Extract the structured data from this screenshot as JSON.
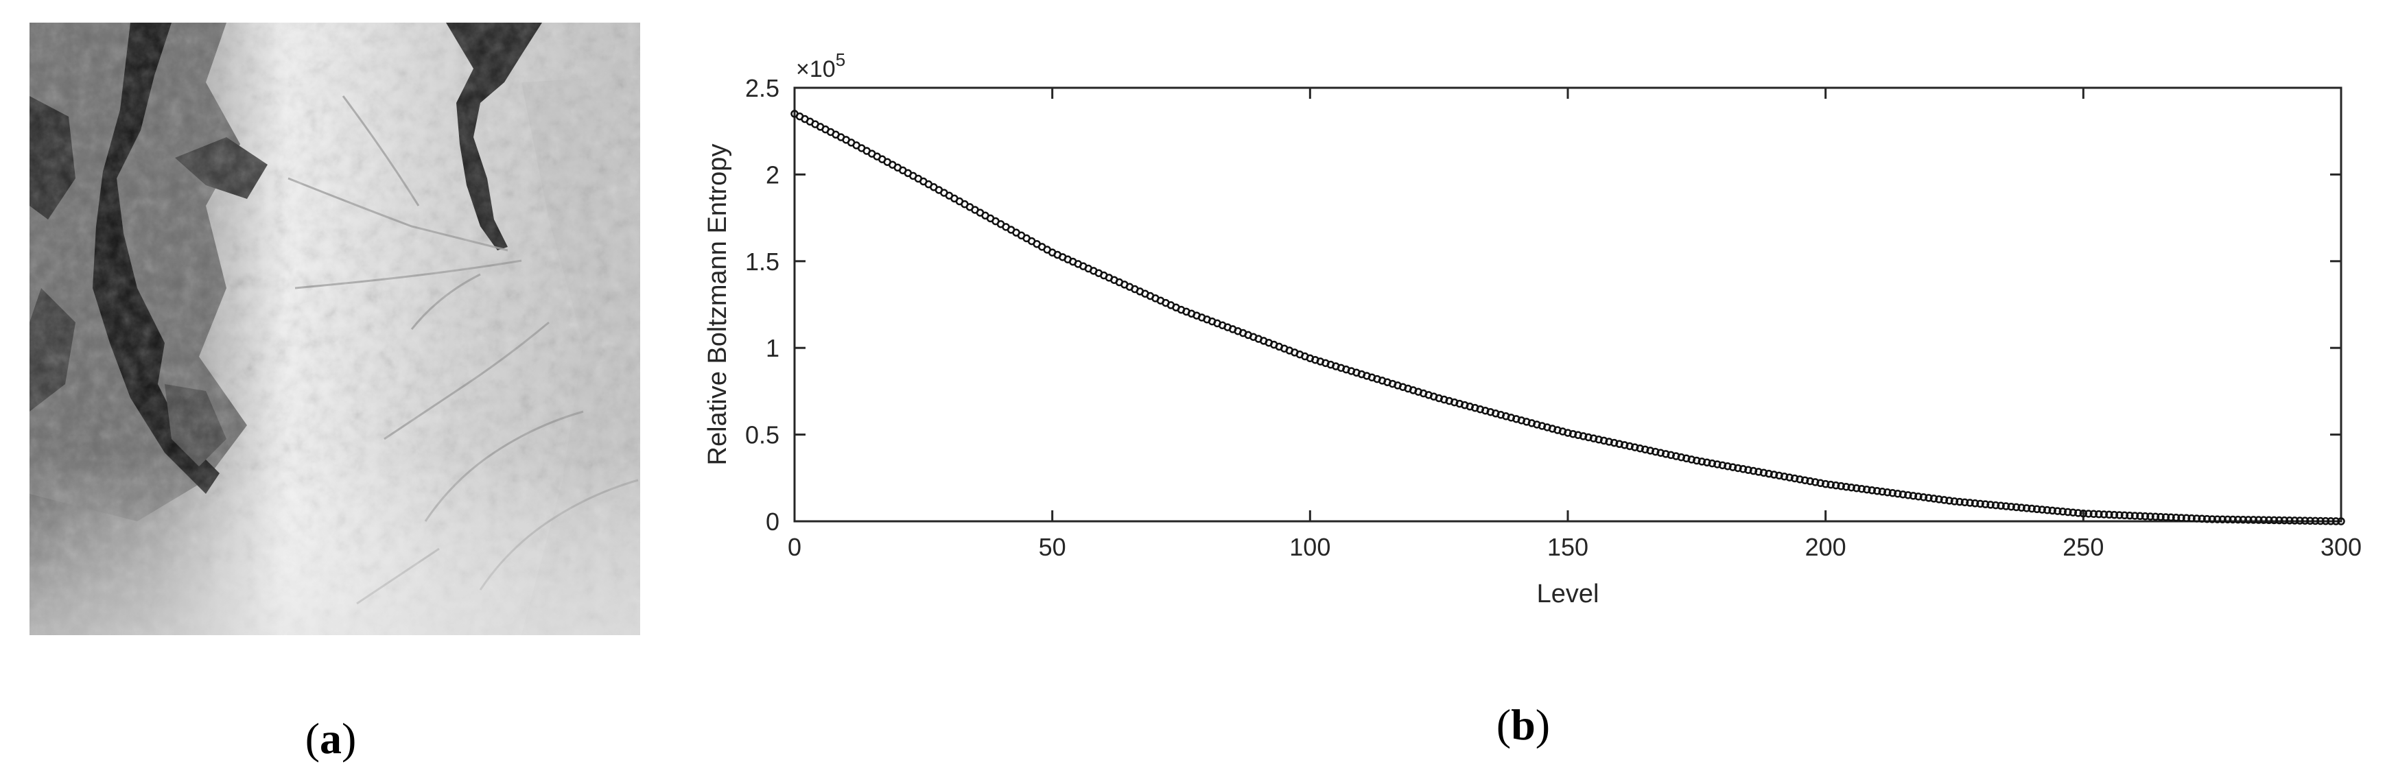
{
  "figure": {
    "panel_a_label": "a",
    "panel_b_label": "b"
  },
  "panel_a": {
    "content": "grayscale elevation raster"
  },
  "chart_data": {
    "type": "scatter",
    "title": "",
    "xlabel": "Level",
    "ylabel": "Relative Boltzmann Entropy",
    "xlim": [
      0,
      300
    ],
    "ylim": [
      0,
      250000
    ],
    "y_exponent_label": "×10",
    "y_exponent_power": "5",
    "x_ticks": [
      0,
      50,
      100,
      150,
      200,
      250,
      300
    ],
    "x_tick_labels": [
      "0",
      "50",
      "100",
      "150",
      "200",
      "250",
      "300"
    ],
    "y_ticks": [
      0,
      50000,
      100000,
      150000,
      200000,
      250000
    ],
    "y_tick_labels": [
      "0",
      "0.5",
      "1",
      "1.5",
      "2",
      "2.5"
    ],
    "grid": false,
    "legend": "none",
    "marker_color": "#111111",
    "series": [
      {
        "x": [
          0,
          10,
          25,
          50,
          75,
          100,
          125,
          150,
          175,
          200,
          225,
          250,
          275,
          300
        ],
        "values": [
          235000,
          220000,
          196000,
          155000,
          122000,
          94000,
          71000,
          51000,
          35000,
          21500,
          11500,
          4500,
          1200,
          0
        ]
      }
    ]
  }
}
